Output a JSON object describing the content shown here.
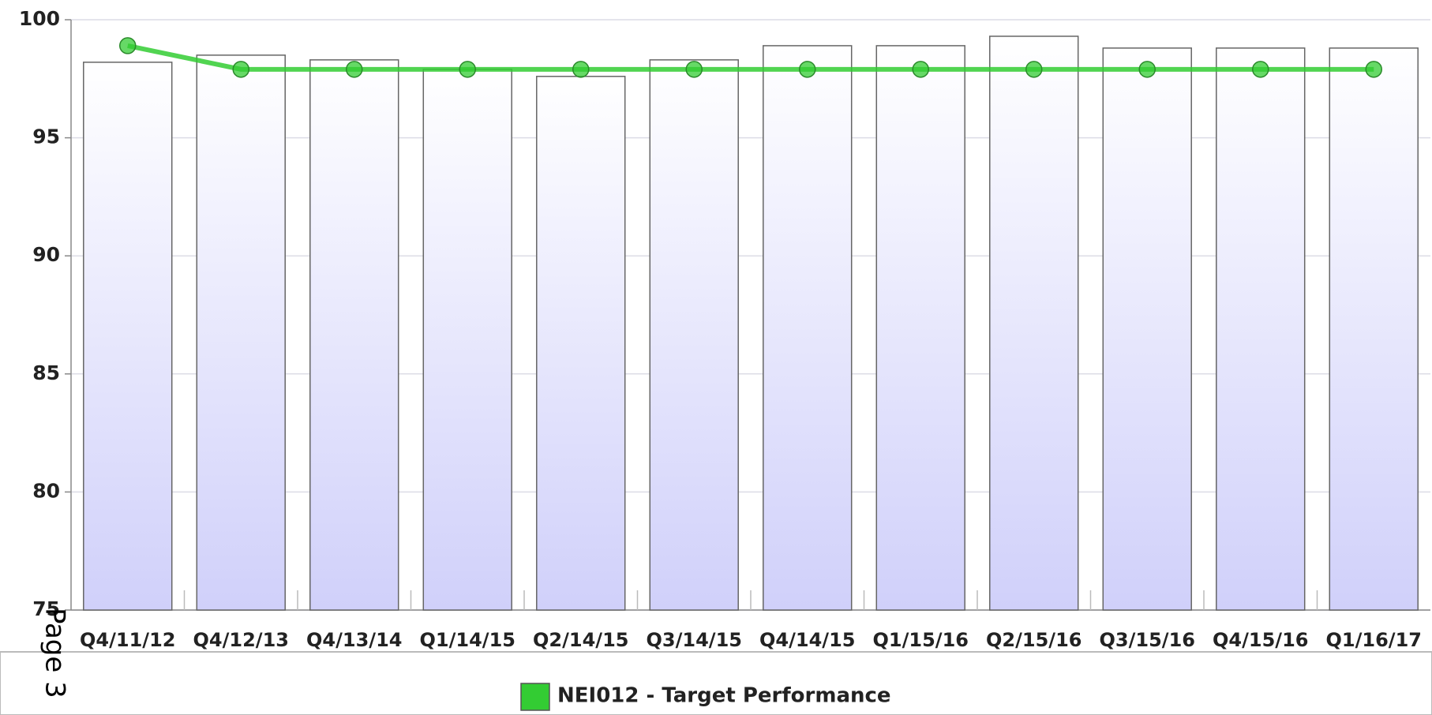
{
  "chart_data": {
    "type": "bar",
    "categories": [
      "Q4/11/12",
      "Q4/12/13",
      "Q4/13/14",
      "Q1/14/15",
      "Q2/14/15",
      "Q3/14/15",
      "Q4/14/15",
      "Q1/15/16",
      "Q2/15/16",
      "Q3/15/16",
      "Q4/15/16",
      "Q1/16/17"
    ],
    "series": [
      {
        "type": "bar",
        "color": "#d0d0fa",
        "values": [
          98.2,
          98.5,
          98.3,
          97.9,
          97.6,
          98.3,
          98.9,
          98.9,
          99.3,
          98.8,
          98.8,
          98.8
        ]
      },
      {
        "type": "line",
        "name": "NEI012 - Target Performance",
        "color": "#33cc33",
        "values": [
          98.9,
          97.9,
          97.9,
          97.9,
          97.9,
          97.9,
          97.9,
          97.9,
          97.9,
          97.9,
          97.9,
          97.9
        ]
      }
    ],
    "ylim": [
      75,
      100
    ],
    "yticks": [
      75,
      80,
      85,
      90,
      95,
      100
    ],
    "grid": true,
    "page_label": "Page 3"
  }
}
